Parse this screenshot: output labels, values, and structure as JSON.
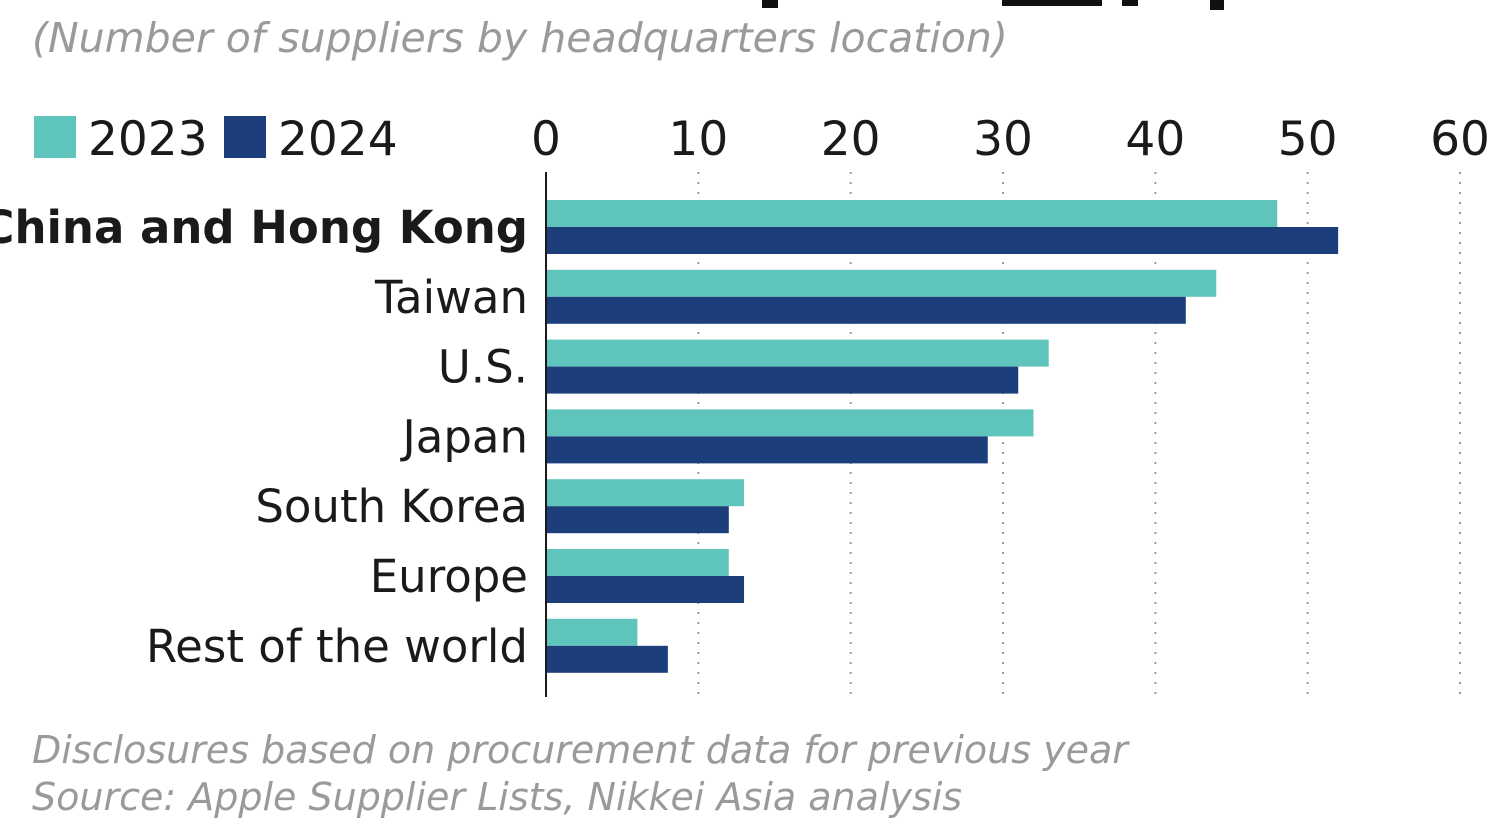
{
  "chart_data": {
    "type": "bar",
    "orientation": "horizontal",
    "subtitle": "(Number of suppliers by headquarters location)",
    "categories": [
      "China and Hong Kong",
      "Taiwan",
      "U.S.",
      "Japan",
      "South Korea",
      "Europe",
      "Rest of the world"
    ],
    "series": [
      {
        "name": "2023",
        "color": "#5ec4bc",
        "values": [
          48,
          44,
          33,
          32,
          13,
          12,
          6
        ]
      },
      {
        "name": "2024",
        "color": "#1c3f7c",
        "values": [
          52,
          42,
          31,
          29,
          12,
          13,
          8
        ]
      }
    ],
    "xlim": [
      0,
      60
    ],
    "xticks": [
      "0",
      "10",
      "20",
      "30",
      "40",
      "50",
      "60"
    ],
    "grid": true,
    "legend_position": "top-left",
    "emphasized_category": "China and Hong Kong",
    "notes": [
      "Disclosures based on procurement data for previous year",
      "Source: Apple Supplier Lists, Nikkei Asia analysis"
    ]
  }
}
